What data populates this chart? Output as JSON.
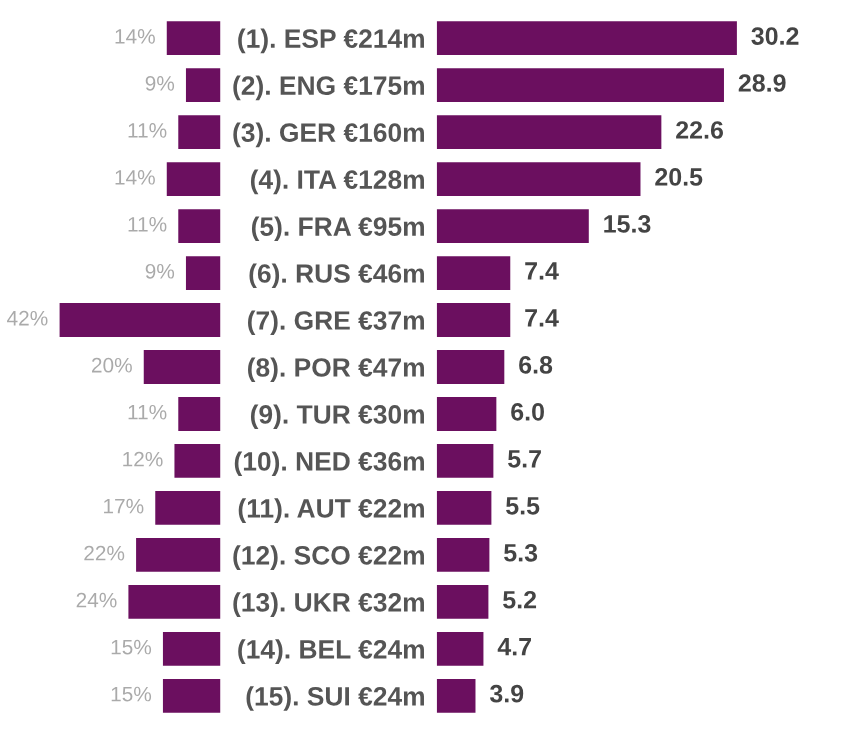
{
  "chart_data": [
    {
      "type": "bar",
      "orientation": "horizontal",
      "categories": [
        null,
        null,
        null,
        null,
        null,
        null,
        null,
        null,
        null,
        null,
        null,
        null,
        null,
        null,
        null
      ],
      "values": [
        14,
        9,
        11,
        14,
        11,
        9,
        42,
        20,
        11,
        12,
        17,
        22,
        24,
        15,
        15
      ],
      "value_labels": [
        "14%",
        "9%",
        "11%",
        "14%",
        "11%",
        "9%",
        "42%",
        "20%",
        "11%",
        "12%",
        "17%",
        "22%",
        "24%",
        "15%",
        "15%"
      ],
      "color": "#6b0f5f",
      "tick_labels": false,
      "grid": false,
      "legend": false
    },
    {
      "type": "bar",
      "orientation": "horizontal",
      "categories": [
        "(1). ESP €214m",
        "(2). ENG €175m",
        "(3). GER €160m",
        "(4). ITA €128m",
        "(5). FRA €95m",
        "(6). RUS €46m",
        "(7). GRE €37m",
        "(8). POR €47m",
        "(9). TUR €30m",
        "(10). NED €36m",
        "(11). AUT €22m",
        "(12). SCO €22m",
        "(13). UKR €32m",
        "(14). BEL €24m",
        "(15). SUI €24m"
      ],
      "values": [
        30.2,
        28.9,
        22.6,
        20.5,
        15.3,
        7.4,
        7.4,
        6.8,
        6.0,
        5.7,
        5.5,
        5.3,
        5.2,
        4.7,
        3.9
      ],
      "value_labels": [
        "30.2",
        "28.9",
        "22.6",
        "20.5",
        "15.3",
        "7.4",
        "7.4",
        "6.8",
        "6.0",
        "5.7",
        "5.5",
        "5.3",
        "5.2",
        "4.7",
        "3.9"
      ],
      "color": "#6b0f5f",
      "tick_labels": "y",
      "grid": false,
      "legend": false
    }
  ]
}
